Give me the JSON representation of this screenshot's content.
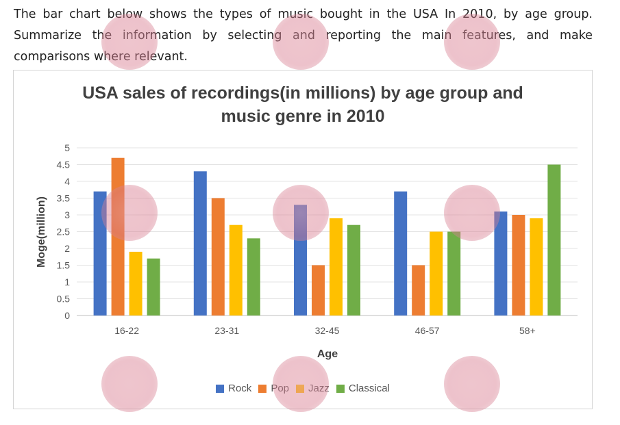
{
  "prompt": {
    "text": "The bar chart below shows the types of music bought in the USA In 2010, by age group. Summarize the information by selecting and reporting the main features, and make comparisons where relevant."
  },
  "chart_data": {
    "type": "bar",
    "title_line1": "USA sales of recordings(in millions) by age group and",
    "title_line2": "music genre in 2010",
    "xlabel": "Age",
    "ylabel": "Moge(million)",
    "ylim": [
      0,
      5
    ],
    "yticks": [
      "0",
      "0.5",
      "1",
      "1.5",
      "2",
      "2.5",
      "3",
      "3.5",
      "4",
      "4.5",
      "5"
    ],
    "categories": [
      "16-22",
      "23-31",
      "32-45",
      "46-57",
      "58+"
    ],
    "series": [
      {
        "name": "Rock",
        "color": "#4472C4",
        "values": [
          3.7,
          4.3,
          3.3,
          3.7,
          3.1
        ]
      },
      {
        "name": "Pop",
        "color": "#ED7D31",
        "values": [
          4.7,
          3.5,
          1.5,
          1.5,
          3.0
        ]
      },
      {
        "name": "Jazz",
        "color": "#FFC000",
        "values": [
          1.9,
          2.7,
          2.9,
          2.5,
          2.9
        ]
      },
      {
        "name": "Classical",
        "color": "#70AD47",
        "values": [
          1.7,
          2.3,
          2.7,
          2.5,
          4.5
        ]
      }
    ],
    "grid": true,
    "legend": "bottom"
  }
}
